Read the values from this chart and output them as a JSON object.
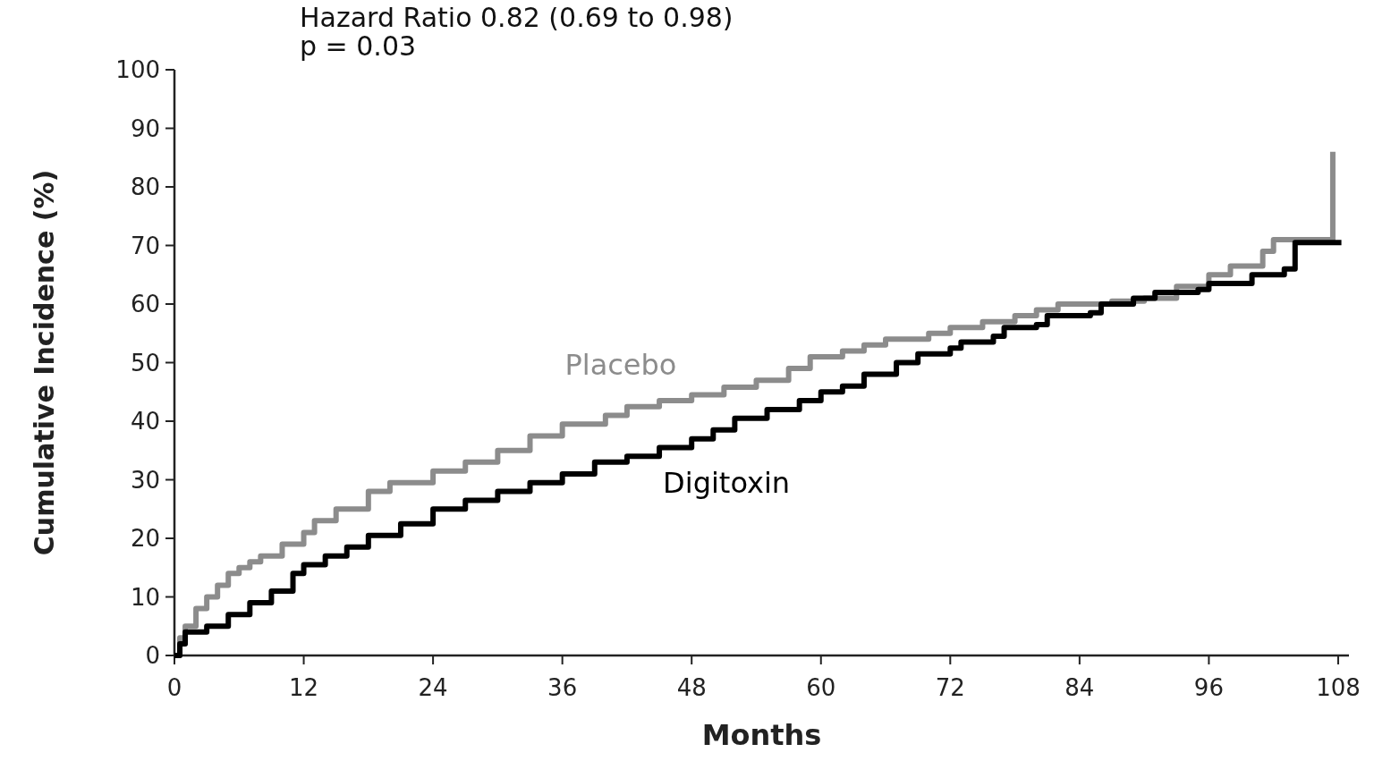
{
  "chart_data": {
    "type": "step",
    "xlabel": "Months",
    "ylabel": "Cumulative Incidence (%)",
    "annotations": [
      "Hazard Ratio 0.82 (0.69  to  0.98)",
      "p = 0.03"
    ],
    "xlim": [
      0,
      109
    ],
    "xticks": [
      0,
      12,
      24,
      36,
      48,
      60,
      72,
      84,
      96,
      108
    ],
    "ylim": [
      0,
      100
    ],
    "yticks": [
      0,
      10,
      20,
      30,
      40,
      50,
      60,
      70,
      80,
      90,
      100
    ],
    "grid": false,
    "legend": false,
    "line_style": "solid",
    "marker": "none",
    "series": [
      {
        "name": "Placebo",
        "color": "#8c8c8c",
        "x": [
          0,
          0.5,
          1,
          2,
          3,
          4,
          5,
          6,
          7,
          8,
          10,
          12,
          13,
          15,
          18,
          20,
          24,
          27,
          30,
          33,
          36,
          40,
          42,
          45,
          48,
          51,
          54,
          57,
          59,
          62,
          64,
          66,
          70,
          72,
          75,
          78,
          80,
          82,
          87,
          90,
          93,
          96,
          98,
          101,
          102,
          107.5,
          107.5
        ],
        "values": [
          0,
          3,
          5,
          8,
          10,
          12,
          14,
          15,
          16,
          17,
          19,
          21,
          23,
          25,
          28,
          29.5,
          31.5,
          33,
          35,
          37.5,
          39.5,
          41,
          42.5,
          43.5,
          44.5,
          45.8,
          47,
          49,
          51,
          52,
          53,
          54,
          55,
          56,
          57,
          58,
          59,
          60,
          60.5,
          61,
          63,
          65,
          66.5,
          69,
          71,
          71,
          86
        ]
      },
      {
        "name": "Digitoxin",
        "color": "#000000",
        "x": [
          0,
          0.5,
          1,
          3,
          5,
          7,
          9,
          11,
          12,
          14,
          16,
          18,
          21,
          24,
          27,
          30,
          33,
          36,
          39,
          42,
          45,
          48,
          50,
          52,
          55,
          58,
          60,
          62,
          64,
          67,
          69,
          72,
          73,
          76,
          77,
          80,
          81,
          85,
          86,
          89,
          91,
          95,
          96,
          100,
          103,
          104,
          108.3
        ],
        "values": [
          0,
          2,
          4,
          5,
          7,
          9,
          11,
          14,
          15.5,
          17,
          18.5,
          20.5,
          22.5,
          25,
          26.5,
          28,
          29.5,
          31,
          33,
          34,
          35.5,
          37,
          38.5,
          40.5,
          42,
          43.5,
          45,
          46,
          48,
          50,
          51.5,
          52.5,
          53.5,
          54.5,
          56,
          56.5,
          58,
          58.5,
          60,
          61,
          62,
          62.5,
          63.5,
          65,
          66,
          70.5,
          70.5
        ]
      }
    ]
  }
}
